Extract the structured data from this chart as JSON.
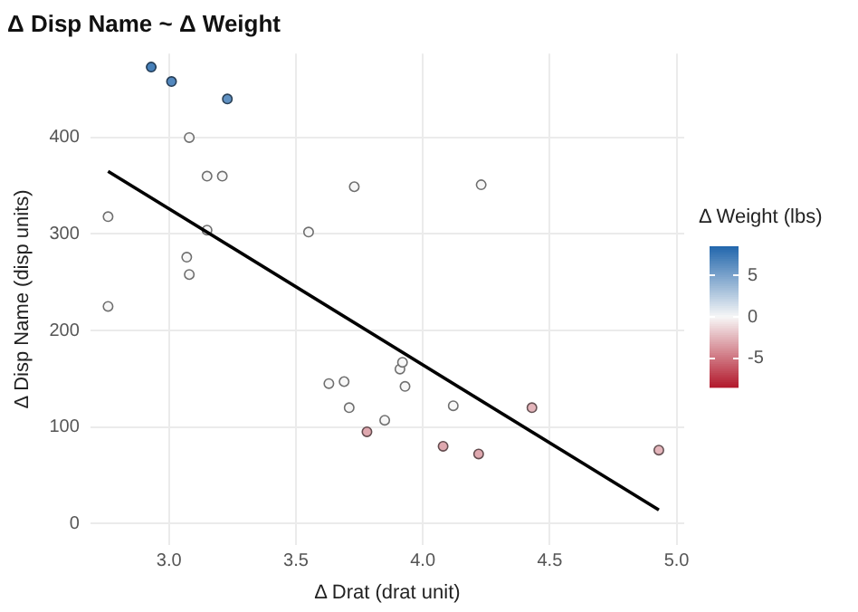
{
  "chart_data": {
    "type": "scatter",
    "title": "Δ Disp Name ~ Δ Weight",
    "xlabel": "Δ Drat (drat unit)",
    "ylabel": "Δ Disp Name (disp units)",
    "clabel": "Δ Weight (lbs)",
    "xlim": [
      2.69,
      5.03
    ],
    "xticks": [
      {
        "value": 3,
        "label": "3.0"
      },
      {
        "value": 3.5,
        "label": "3.5"
      },
      {
        "value": 4,
        "label": "4.0"
      },
      {
        "value": 4.5,
        "label": "4.5"
      },
      {
        "value": 5,
        "label": "5.0"
      }
    ],
    "ylim": [
      -22,
      487
    ],
    "yticks": [
      0,
      100,
      200,
      300,
      400
    ],
    "clim": [
      -8.5,
      8.5
    ],
    "cticks": [
      -5,
      0,
      5
    ],
    "grid": true,
    "series": [
      {
        "marker": "circle",
        "x": [
          2.93,
          3.01,
          3.23,
          3.08,
          3.15,
          3.21,
          3.73,
          4.23,
          2.76,
          3.15,
          3.55,
          3.07,
          3.08,
          2.76,
          3.91,
          3.92,
          3.93,
          3.69,
          3.63,
          3.71,
          3.78,
          3.85,
          4.12,
          4.08,
          4.22,
          4.43,
          4.93
        ],
        "values": [
          473,
          458,
          440,
          400,
          360,
          360,
          349,
          351,
          318,
          304,
          302,
          276,
          258,
          225,
          160,
          167,
          142,
          147,
          145,
          120,
          95,
          107,
          122,
          80,
          72,
          120,
          76
        ],
        "colors": [
          "#4780b9",
          "#5388be",
          "#6091c2",
          "#f7f7f7",
          "#f7f7f7",
          "#f7f7f7",
          "#f7f7f7",
          "#f7f7f7",
          "#f7f7f7",
          "#f7f7f7",
          "#f7f7f7",
          "#f7f7f7",
          "#f7f7f7",
          "#f7f7f7",
          "#f7f7f7",
          "#f7f7f7",
          "#f7f7f7",
          "#f7f7f7",
          "#f7f7f7",
          "#f7f7f7",
          "#dfa8af",
          "#f7f7f7",
          "#f7f7f7",
          "#dfa8af",
          "#dfa8af",
          "#e4b5bb",
          "#e4b5bb"
        ],
        "cvalues": [
          7,
          6.5,
          6,
          0,
          0,
          0,
          0,
          0,
          0,
          0,
          0,
          0,
          0,
          0,
          0,
          0,
          0,
          0,
          0,
          0,
          -3,
          0,
          0,
          -3,
          -3,
          -2.5,
          -2.5
        ]
      },
      {
        "type": "line",
        "color": "#000000",
        "x": [
          2.76,
          4.93
        ],
        "values": [
          365,
          14
        ]
      }
    ]
  }
}
